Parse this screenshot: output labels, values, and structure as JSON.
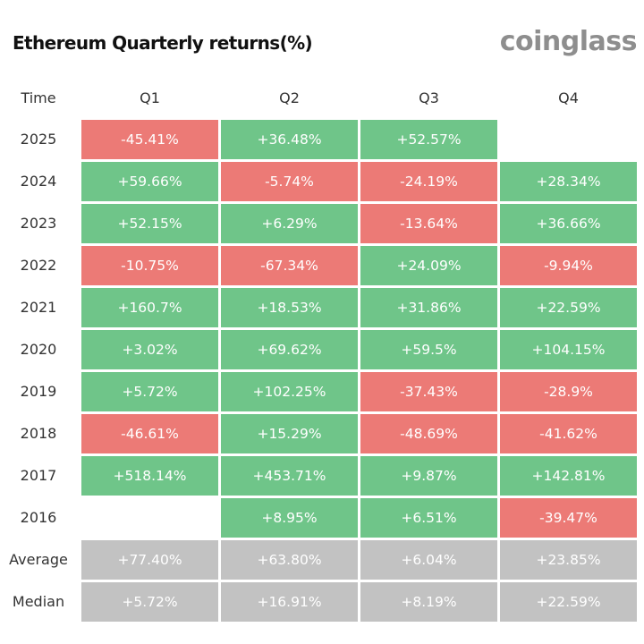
{
  "title": "Ethereum Quarterly returns(%)",
  "brand": "coinglass",
  "colors": {
    "positive": "#6fc589",
    "negative": "#ec7a76",
    "summary": "#c2c2c2"
  },
  "chart_data": {
    "type": "table",
    "title": "Ethereum Quarterly returns(%)",
    "row_header": "Time",
    "columns": [
      "Q1",
      "Q2",
      "Q3",
      "Q4"
    ],
    "rows": [
      {
        "label": "2025",
        "kind": "year",
        "values": [
          "-45.41%",
          "+36.48%",
          "+52.57%",
          ""
        ]
      },
      {
        "label": "2024",
        "kind": "year",
        "values": [
          "+59.66%",
          "-5.74%",
          "-24.19%",
          "+28.34%"
        ]
      },
      {
        "label": "2023",
        "kind": "year",
        "values": [
          "+52.15%",
          "+6.29%",
          "-13.64%",
          "+36.66%"
        ]
      },
      {
        "label": "2022",
        "kind": "year",
        "values": [
          "-10.75%",
          "-67.34%",
          "+24.09%",
          "-9.94%"
        ]
      },
      {
        "label": "2021",
        "kind": "year",
        "values": [
          "+160.7%",
          "+18.53%",
          "+31.86%",
          "+22.59%"
        ]
      },
      {
        "label": "2020",
        "kind": "year",
        "values": [
          "+3.02%",
          "+69.62%",
          "+59.5%",
          "+104.15%"
        ]
      },
      {
        "label": "2019",
        "kind": "year",
        "values": [
          "+5.72%",
          "+102.25%",
          "-37.43%",
          "-28.9%"
        ]
      },
      {
        "label": "2018",
        "kind": "year",
        "values": [
          "-46.61%",
          "+15.29%",
          "-48.69%",
          "-41.62%"
        ]
      },
      {
        "label": "2017",
        "kind": "year",
        "values": [
          "+518.14%",
          "+453.71%",
          "+9.87%",
          "+142.81%"
        ]
      },
      {
        "label": "2016",
        "kind": "year",
        "values": [
          "",
          "+8.95%",
          "+6.51%",
          "-39.47%"
        ]
      },
      {
        "label": "Average",
        "kind": "summary",
        "values": [
          "+77.40%",
          "+63.80%",
          "+6.04%",
          "+23.85%"
        ]
      },
      {
        "label": "Median",
        "kind": "summary",
        "values": [
          "+5.72%",
          "+16.91%",
          "+8.19%",
          "+22.59%"
        ]
      }
    ]
  }
}
